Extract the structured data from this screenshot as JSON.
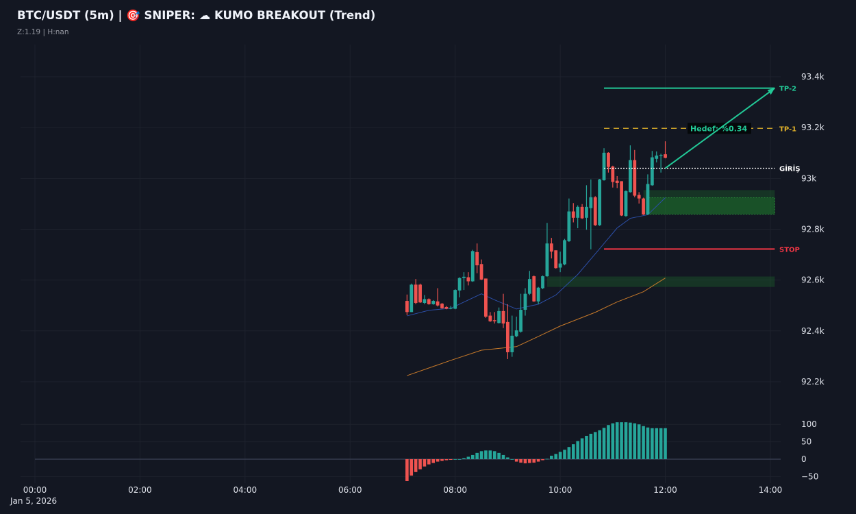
{
  "header": {
    "title": "BTC/USDT (5m) | 🎯 SNIPER: ☁ KUMO BREAKOUT (Trend)",
    "subtitle": "Z:1.19 | H:nan"
  },
  "colors": {
    "background": "#131722",
    "up": "#26a69a",
    "down": "#ef5350",
    "ema_fast": "#2c4fa8",
    "ema_slow": "#c87a2a",
    "tp2": "#22c997",
    "tp1": "#e0b12a",
    "entry": "#ffffff",
    "stop": "#f23645",
    "zone": "#1e6b2a"
  },
  "chart_data": [
    {
      "type": "candlestick",
      "date_label": "Jan 5, 2026",
      "x_ticks": [
        "00:00",
        "02:00",
        "04:00",
        "06:00",
        "08:00",
        "10:00",
        "12:00",
        "14:00"
      ],
      "xlim": [
        "00:00",
        "14:10"
      ],
      "y_ticks": [
        "93.4k",
        "93.2k",
        "93k",
        "92.8k",
        "92.6k",
        "92.4k",
        "92.2k"
      ],
      "y_tick_values": [
        93400,
        93200,
        93000,
        92800,
        92600,
        92400,
        92200
      ],
      "ylim": [
        92100,
        93550
      ],
      "grid": true,
      "candle_interval": "5m",
      "first_candle": "07:05",
      "ohlc": [
        [
          92518,
          92543,
          92462,
          92474
        ],
        [
          92474,
          92586,
          92474,
          92582
        ],
        [
          92582,
          92604,
          92505,
          92510
        ],
        [
          92582,
          92586,
          92510,
          92512
        ],
        [
          92510,
          92541,
          92505,
          92525
        ],
        [
          92525,
          92528,
          92503,
          92505
        ],
        [
          92505,
          92521,
          92503,
          92518
        ],
        [
          92516,
          92568,
          92496,
          92500
        ],
        [
          92507,
          92510,
          92487,
          92489
        ],
        [
          92494,
          92498,
          92485,
          92487
        ],
        [
          92487,
          92498,
          92485,
          92491
        ],
        [
          92487,
          92564,
          92485,
          92561
        ],
        [
          92559,
          92611,
          92532,
          92608
        ],
        [
          92608,
          92631,
          92561,
          92613
        ],
        [
          92611,
          92631,
          92579,
          92595
        ],
        [
          92595,
          92719,
          92593,
          92714
        ],
        [
          92710,
          92744,
          92627,
          92658
        ],
        [
          92663,
          92681,
          92600,
          92602
        ],
        [
          92606,
          92606,
          92451,
          92456
        ],
        [
          92460,
          92474,
          92435,
          92438
        ],
        [
          92442,
          92474,
          92429,
          92438
        ],
        [
          92431,
          92492,
          92429,
          92478
        ],
        [
          92478,
          92546,
          92411,
          92429
        ],
        [
          92435,
          92505,
          92289,
          92316
        ],
        [
          92316,
          92460,
          92298,
          92381
        ],
        [
          92379,
          92456,
          92375,
          92402
        ],
        [
          92397,
          92546,
          92393,
          92483
        ],
        [
          92483,
          92568,
          92460,
          92546
        ],
        [
          92546,
          92636,
          92541,
          92604
        ],
        [
          92615,
          92618,
          92514,
          92516
        ],
        [
          92516,
          92573,
          92505,
          92570
        ],
        [
          92568,
          92618,
          92564,
          92615
        ],
        [
          92615,
          92825,
          92613,
          92744
        ],
        [
          92744,
          92766,
          92685,
          92712
        ],
        [
          92717,
          92717,
          92645,
          92647
        ],
        [
          92649,
          92712,
          92631,
          92665
        ],
        [
          92662,
          92762,
          92658,
          92757
        ],
        [
          92753,
          92921,
          92750,
          92870
        ],
        [
          92870,
          92903,
          92827,
          92845
        ],
        [
          92845,
          92894,
          92804,
          92888
        ],
        [
          92888,
          92899,
          92840,
          92843
        ],
        [
          92845,
          92973,
          92798,
          92888
        ],
        [
          92883,
          92996,
          92721,
          92926
        ],
        [
          92926,
          92930,
          92813,
          92816
        ],
        [
          92816,
          92998,
          92813,
          92996
        ],
        [
          92993,
          93119,
          92991,
          93101
        ],
        [
          93101,
          93103,
          93023,
          93045
        ],
        [
          93047,
          93050,
          92964,
          92986
        ],
        [
          92991,
          93009,
          92962,
          92982
        ],
        [
          92989,
          92989,
          92852,
          92854
        ],
        [
          92852,
          92953,
          92849,
          92950
        ],
        [
          92946,
          93130,
          92944,
          93072
        ],
        [
          93072,
          93112,
          92926,
          92932
        ],
        [
          92935,
          92946,
          92901,
          92921
        ],
        [
          92921,
          92924,
          92856,
          92858
        ],
        [
          92858,
          93016,
          92856,
          92978
        ],
        [
          92973,
          93108,
          92971,
          93083
        ],
        [
          93077,
          93106,
          93063,
          93090
        ],
        [
          93090,
          93097,
          93023,
          93092
        ],
        [
          93095,
          93146,
          93079,
          93081
        ]
      ],
      "ema_fast": [
        [
          "07:05",
          92459
        ],
        [
          "07:30",
          92481
        ],
        [
          "07:55",
          92489
        ],
        [
          "08:30",
          92546
        ],
        [
          "08:45",
          92522
        ],
        [
          "09:10",
          92486
        ],
        [
          "09:35",
          92505
        ],
        [
          "09:55",
          92541
        ],
        [
          "10:20",
          92622
        ],
        [
          "10:40",
          92703
        ],
        [
          "11:05",
          92805
        ],
        [
          "11:20",
          92843
        ],
        [
          "11:40",
          92857
        ],
        [
          "12:00",
          92924
        ]
      ],
      "ema_slow": [
        [
          "07:05",
          92224
        ],
        [
          "07:55",
          92284
        ],
        [
          "08:30",
          92324
        ],
        [
          "09:10",
          92338
        ],
        [
          "09:35",
          92378
        ],
        [
          "10:00",
          92419
        ],
        [
          "10:40",
          92473
        ],
        [
          "11:05",
          92514
        ],
        [
          "11:35",
          92554
        ],
        [
          "12:00",
          92608
        ]
      ],
      "levels": [
        {
          "key": "tp2",
          "label": "TP-2",
          "price": 93355,
          "style": "solid",
          "from": "10:50",
          "to": "14:05"
        },
        {
          "key": "tp1",
          "label": "TP-1",
          "price": 93197,
          "style": "dashed",
          "from": "10:50",
          "to": "14:05"
        },
        {
          "key": "entry",
          "label": "GİRİŞ",
          "price": 93040,
          "style": "dotted",
          "from": "10:50",
          "to": "14:05"
        },
        {
          "key": "stop",
          "label": "STOP",
          "price": 92722,
          "style": "solid",
          "from": "10:50",
          "to": "14:05"
        }
      ],
      "target_label": "Hedef: %0.34",
      "arrow": {
        "from": [
          "12:00",
          93040
        ],
        "to": [
          "14:05",
          93355
        ]
      },
      "zones": [
        {
          "from": "11:35",
          "to": "14:05",
          "top": 92954,
          "bottom": 92859,
          "inner_top": 92924
        },
        {
          "from": "09:45",
          "to": "14:05",
          "top": 92614,
          "bottom": 92573
        }
      ]
    },
    {
      "type": "bar",
      "y_ticks": [
        "100",
        "50",
        "0",
        "−50"
      ],
      "y_tick_values": [
        100,
        50,
        0,
        -50
      ],
      "ylim": [
        -70,
        110
      ],
      "values": [
        -63,
        -47,
        -37,
        -29,
        -21,
        -15,
        -11,
        -7,
        -5,
        -3,
        -2,
        0,
        0,
        3,
        7,
        12,
        18,
        23,
        25,
        25,
        23,
        18,
        12,
        5,
        0,
        -7,
        -10,
        -12,
        -11,
        -10,
        -7,
        -3,
        1,
        10,
        15,
        21,
        27,
        35,
        43,
        52,
        60,
        67,
        73,
        78,
        83,
        90,
        98,
        103,
        106,
        106,
        106,
        105,
        103,
        100,
        95,
        91,
        89,
        89,
        89,
        89
      ]
    }
  ]
}
